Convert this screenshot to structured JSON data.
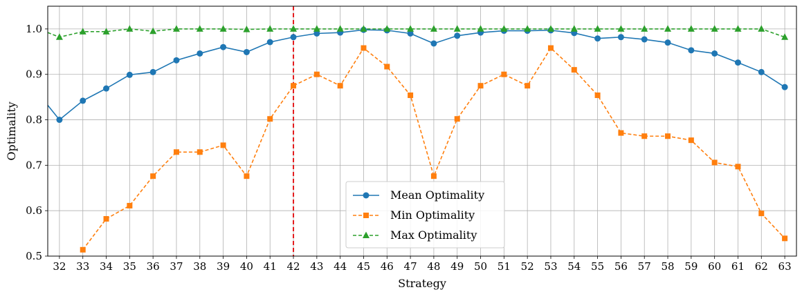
{
  "chart_data": {
    "type": "line",
    "xlabel": "Strategy",
    "ylabel": "Optimality",
    "x": [
      32,
      33,
      34,
      35,
      36,
      37,
      38,
      39,
      40,
      41,
      42,
      43,
      44,
      45,
      46,
      47,
      48,
      49,
      50,
      51,
      52,
      53,
      54,
      55,
      56,
      57,
      58,
      59,
      60,
      61,
      62,
      63
    ],
    "xlim": [
      31.5,
      63.5
    ],
    "ylim": [
      0.5,
      1.05
    ],
    "yticks": [
      "0.5",
      "0.6",
      "0.7",
      "0.8",
      "0.9",
      "1.0"
    ],
    "grid": true,
    "legend_position": "lower-center",
    "reference_line": {
      "x": 42,
      "color": "#e41a1c",
      "style": "dashed"
    },
    "series": [
      {
        "name": "Mean Optimality",
        "color": "#1f77b4",
        "marker": "circle",
        "linestyle": "solid",
        "values": [
          0.8,
          0.842,
          0.869,
          0.899,
          0.905,
          0.931,
          0.946,
          0.96,
          0.949,
          0.971,
          0.982,
          0.99,
          0.992,
          0.998,
          0.997,
          0.99,
          0.968,
          0.985,
          0.992,
          0.996,
          0.996,
          0.997,
          0.991,
          0.979,
          0.982,
          0.977,
          0.97,
          0.953,
          0.946,
          0.926,
          0.905,
          0.872
        ]
      },
      {
        "name": "Min Optimality",
        "color": "#ff7f0e",
        "marker": "square",
        "linestyle": "dashed",
        "values": [
          null,
          0.514,
          0.582,
          0.611,
          0.676,
          0.729,
          0.729,
          0.744,
          0.676,
          0.802,
          0.875,
          0.9,
          0.875,
          0.958,
          0.917,
          0.854,
          0.676,
          0.802,
          0.875,
          0.9,
          0.875,
          0.958,
          0.91,
          0.854,
          0.771,
          0.764,
          0.764,
          0.755,
          0.706,
          0.697,
          0.594,
          0.539
        ]
      },
      {
        "name": "Max Optimality",
        "color": "#2ca02c",
        "marker": "triangle",
        "linestyle": "dashed",
        "values": [
          0.982,
          0.994,
          0.994,
          1.0,
          0.995,
          1.0,
          1.0,
          1.0,
          0.999,
          1.0,
          1.0,
          1.0,
          1.0,
          1.0,
          1.0,
          1.0,
          1.0,
          1.0,
          1.0,
          1.0,
          1.0,
          1.0,
          1.0,
          1.0,
          1.0,
          1.0,
          1.0,
          1.0,
          1.0,
          1.0,
          1.0,
          0.982
        ]
      }
    ]
  }
}
